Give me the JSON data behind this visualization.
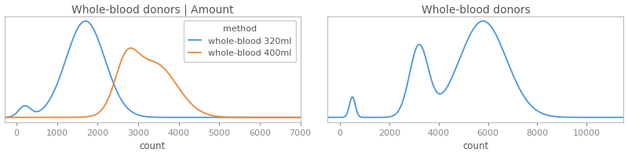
{
  "left_title": "Whole-blood donors | Amount",
  "right_title": "Whole-blood donors",
  "left_xlabel": "count",
  "right_xlabel": "count",
  "left_xlim": [
    -300,
    7000
  ],
  "right_xlim": [
    -500,
    11500
  ],
  "left_xticks": [
    0,
    1000,
    2000,
    3000,
    4000,
    5000,
    6000,
    7000
  ],
  "right_xticks": [
    0,
    2000,
    4000,
    6000,
    8000,
    10000
  ],
  "legend_title": "method",
  "legend_entries": [
    "whole-blood 320ml",
    "whole-blood 400ml"
  ],
  "color_320": "#4C96D7",
  "color_400": "#E8883A",
  "color_all": "#4C96D7",
  "background": "#ffffff",
  "title_fontsize": 10,
  "label_fontsize": 8.5,
  "tick_fontsize": 8,
  "legend_fontsize": 8
}
